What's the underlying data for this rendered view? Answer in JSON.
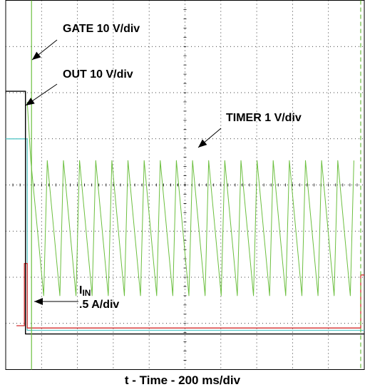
{
  "chart_data": {
    "type": "line",
    "title": "",
    "xlabel": "t - Time - 200 ms/div",
    "ylabel": "",
    "grid": true,
    "divisions": {
      "x": 10,
      "y": 8
    },
    "annotations": [
      {
        "id": "gate",
        "text": "GATE 10 V/div"
      },
      {
        "id": "out",
        "text": "OUT 10 V/div"
      },
      {
        "id": "timer",
        "text": "TIMER 1 V/div"
      },
      {
        "id": "iin_main",
        "text": "I"
      },
      {
        "id": "iin_sub",
        "text": "IN"
      },
      {
        "id": "iin_scale",
        "text": ".5 A/div"
      }
    ],
    "series": [
      {
        "name": "GATE",
        "color": "#000000",
        "x_div": [
          0,
          0.55,
          0.55,
          1.0,
          10.0
        ],
        "y_div": [
          6.03,
          6.03,
          0.77,
          0.77,
          0.77
        ]
      },
      {
        "name": "OUT",
        "color": "#5ac8c8",
        "x_div": [
          0,
          0.6,
          0.6,
          10.0
        ],
        "y_div": [
          5.0,
          5.0,
          0.85,
          0.85
        ]
      },
      {
        "name": "TIMER",
        "color": "#6cbf3f",
        "period_div": 0.45,
        "x_div": [
          0.7,
          1.06,
          1.16
        ],
        "y_div": [
          4.53,
          1.6,
          4.53
        ]
      },
      {
        "name": "I_IN",
        "color": "#d42d2d",
        "x_div": [
          0.3,
          0.52,
          0.52,
          0.6,
          0.6,
          9.9,
          9.9,
          10.0
        ],
        "y_div": [
          0.95,
          0.95,
          2.3,
          2.3,
          0.9,
          0.9,
          2.05,
          2.05
        ]
      }
    ]
  }
}
